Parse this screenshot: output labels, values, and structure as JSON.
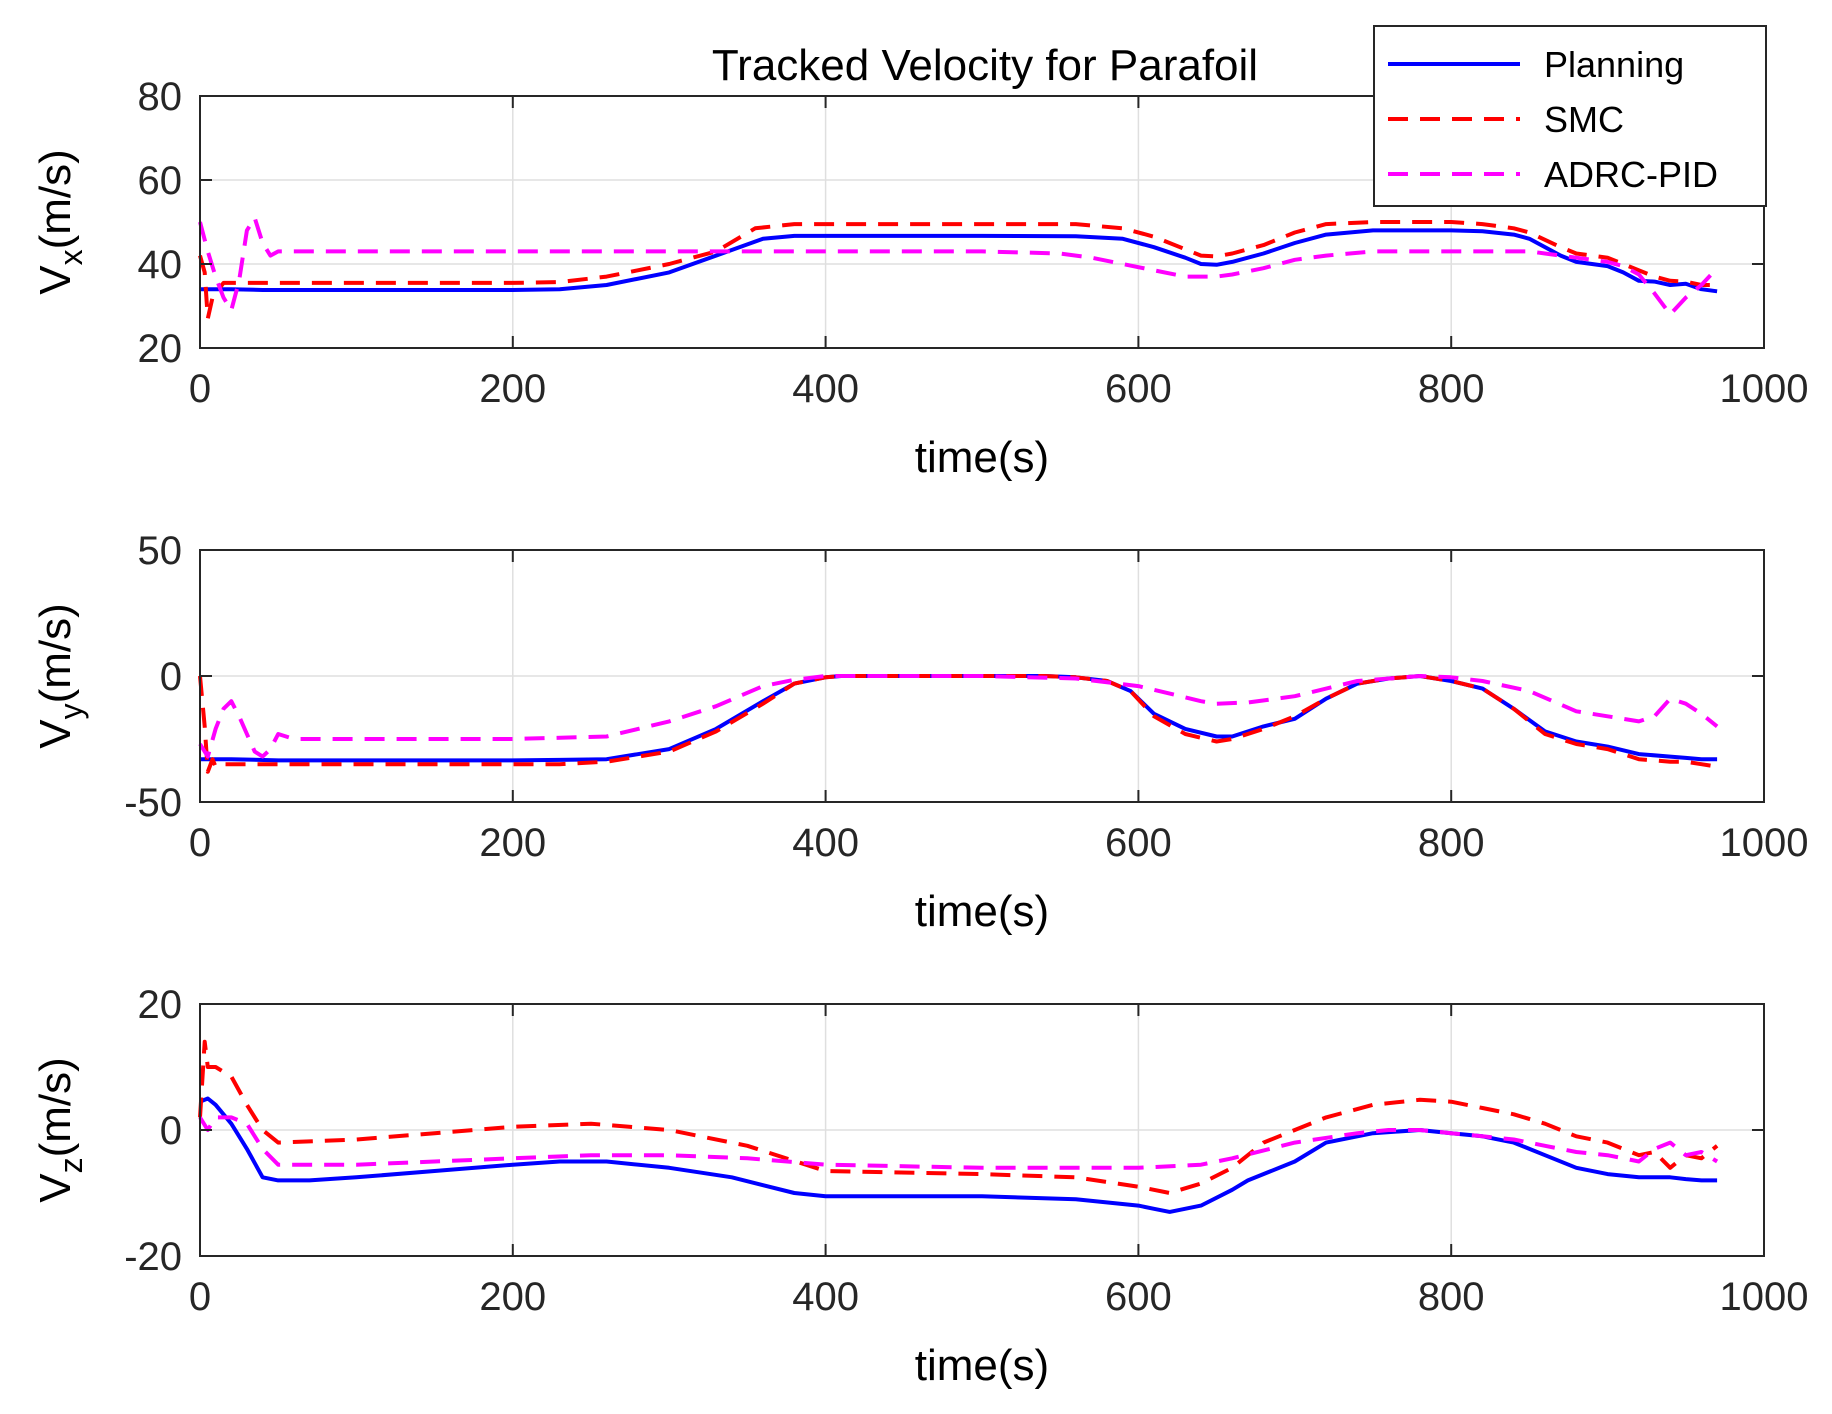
{
  "chart_data": {
    "type": "line",
    "title": "Tracked Velocity for Parafoil",
    "legend": {
      "placement": "top-right",
      "entries": [
        "Planning",
        "SMC",
        "ADRC-PID"
      ]
    },
    "styles": [
      {
        "name": "Planning",
        "color": "#0000ff",
        "dash": "solid"
      },
      {
        "name": "SMC",
        "color": "#ff0000",
        "dash": "dashed"
      },
      {
        "name": "ADRC-PID",
        "color": "#ff00ff",
        "dash": "dashed"
      }
    ],
    "grid": true,
    "subplots": [
      {
        "ylabel_main": "V",
        "ylabel_sub": "x",
        "ylabel_unit": "(m/s)",
        "xlabel": "time(s)",
        "xlim": [
          0,
          1000
        ],
        "ylim": [
          20,
          80
        ],
        "xticks": [
          0,
          200,
          400,
          600,
          800,
          1000
        ],
        "yticks": [
          20,
          40,
          60,
          80
        ],
        "series": [
          {
            "name": "Planning",
            "x": [
              0,
              20,
              40,
              60,
              100,
              150,
              200,
              230,
              260,
              300,
              330,
              360,
              380,
              400,
              450,
              500,
              560,
              590,
              610,
              630,
              640,
              650,
              660,
              680,
              700,
              720,
              750,
              800,
              820,
              840,
              850,
              870,
              880,
              900,
              910,
              920,
              930,
              940,
              950,
              960,
              970
            ],
            "y": [
              34,
              34,
              33.8,
              33.8,
              33.8,
              33.8,
              33.8,
              34,
              35,
              38,
              42,
              46,
              46.7,
              46.7,
              46.7,
              46.7,
              46.6,
              46,
              44,
              41.5,
              40,
              39.8,
              40.5,
              42.5,
              45,
              47,
              48,
              48,
              47.8,
              47,
              46,
              42,
              40.5,
              39.5,
              38,
              36,
              35.8,
              35,
              35.3,
              34,
              33.5
            ]
          },
          {
            "name": "SMC",
            "x": [
              0,
              3,
              5,
              8,
              15,
              20,
              30,
              50,
              100,
              150,
              200,
              230,
              260,
              300,
              330,
              355,
              380,
              400,
              450,
              500,
              560,
              590,
              610,
              630,
              640,
              650,
              660,
              680,
              700,
              720,
              750,
              800,
              820,
              840,
              850,
              870,
              880,
              900,
              910,
              920,
              930,
              940,
              950,
              960,
              970
            ],
            "y": [
              42,
              38,
              27,
              32,
              35.5,
              35.5,
              35.5,
              35.5,
              35.5,
              35.5,
              35.5,
              35.7,
              37,
              40,
              43,
              48.5,
              49.5,
              49.5,
              49.5,
              49.5,
              49.5,
              48.5,
              46.5,
              43.5,
              42,
              41.8,
              42.5,
              44.5,
              47.5,
              49.5,
              50,
              50,
              49.5,
              48.5,
              47.5,
              44,
              42.5,
              41.5,
              40,
              38.5,
              37,
              36,
              35.8,
              35,
              35
            ]
          },
          {
            "name": "ADRC-PID",
            "x": [
              0,
              5,
              10,
              15,
              20,
              25,
              30,
              35,
              40,
              45,
              50,
              100,
              200,
              300,
              350,
              400,
              500,
              550,
              570,
              590,
              610,
              630,
              650,
              660,
              680,
              700,
              720,
              750,
              800,
              850,
              860,
              880,
              900,
              910,
              920,
              930,
              940,
              950,
              960,
              970
            ],
            "y": [
              50,
              43,
              37,
              32,
              29,
              36,
              48,
              51,
              45,
              42,
              43,
              43,
              43,
              43,
              43,
              43,
              43,
              42.5,
              41.5,
              40,
              38.5,
              37,
              37,
              37.5,
              39,
              41,
              42,
              43,
              43,
              43,
              42.5,
              41.5,
              40.5,
              39.5,
              37.5,
              33,
              28,
              32,
              35,
              39
            ]
          }
        ]
      },
      {
        "ylabel_main": "V",
        "ylabel_sub": "y",
        "ylabel_unit": "(m/s)",
        "xlabel": "time(s)",
        "xlim": [
          0,
          1000
        ],
        "ylim": [
          -50,
          50
        ],
        "xticks": [
          0,
          200,
          400,
          600,
          800,
          1000
        ],
        "yticks": [
          -50,
          0,
          50
        ],
        "series": [
          {
            "name": "Planning",
            "x": [
              0,
              20,
              50,
              100,
              150,
              200,
              230,
              260,
              300,
              330,
              360,
              380,
              400,
              410,
              500,
              540,
              560,
              580,
              595,
              610,
              630,
              650,
              660,
              680,
              700,
              720,
              740,
              760,
              780,
              800,
              820,
              840,
              860,
              880,
              900,
              920,
              940,
              950,
              960,
              970
            ],
            "y": [
              -33,
              -33,
              -33.5,
              -33.5,
              -33.5,
              -33.5,
              -33.3,
              -33,
              -29,
              -21,
              -10,
              -3,
              -0.5,
              0,
              0,
              0,
              -0.5,
              -2,
              -6,
              -15,
              -21,
              -24,
              -24,
              -20,
              -17,
              -9,
              -3,
              -1,
              0,
              -2,
              -5,
              -13,
              -22,
              -26,
              -28,
              -31,
              -32,
              -32.5,
              -33,
              -33
            ]
          },
          {
            "name": "SMC",
            "x": [
              0,
              3,
              5,
              8,
              10,
              15,
              20,
              50,
              100,
              150,
              200,
              230,
              260,
              300,
              330,
              360,
              380,
              400,
              410,
              500,
              540,
              560,
              580,
              595,
              610,
              630,
              650,
              660,
              680,
              700,
              720,
              740,
              760,
              780,
              800,
              820,
              840,
              860,
              880,
              900,
              920,
              940,
              950,
              960,
              970
            ],
            "y": [
              0,
              -20,
              -38,
              -33,
              -36,
              -35,
              -35,
              -35,
              -35,
              -35,
              -35,
              -35,
              -34,
              -30,
              -22,
              -11,
              -3,
              -0.5,
              0,
              0,
              0,
              -0.5,
              -2,
              -6,
              -16,
              -23,
              -26,
              -25,
              -21,
              -16,
              -9,
              -3,
              -1,
              0,
              -2,
              -5,
              -13,
              -23,
              -27,
              -29,
              -33,
              -34,
              -34,
              -35,
              -36
            ]
          },
          {
            "name": "ADRC-PID",
            "x": [
              0,
              5,
              10,
              15,
              20,
              25,
              30,
              35,
              40,
              45,
              50,
              60,
              100,
              200,
              260,
              300,
              330,
              360,
              380,
              400,
              500,
              560,
              600,
              620,
              640,
              650,
              670,
              700,
              740,
              770,
              780,
              800,
              820,
              850,
              880,
              900,
              910,
              920,
              930,
              940,
              950,
              960,
              970
            ],
            "y": [
              -27,
              -32,
              -21,
              -13,
              -10,
              -16,
              -23,
              -30,
              -32,
              -29,
              -23,
              -25,
              -25,
              -25,
              -24,
              -18,
              -12,
              -4,
              -1.5,
              0,
              0,
              -1,
              -4,
              -7,
              -10,
              -11,
              -10.5,
              -8,
              -2,
              -0.5,
              0,
              -0.5,
              -2,
              -6,
              -14,
              -16,
              -17,
              -18,
              -16,
              -9,
              -11,
              -15,
              -20
            ]
          }
        ]
      },
      {
        "ylabel_main": "V",
        "ylabel_sub": "z",
        "ylabel_unit": "(m/s)",
        "xlabel": "time(s)",
        "xlim": [
          0,
          1000
        ],
        "ylim": [
          -20,
          20
        ],
        "xticks": [
          0,
          200,
          400,
          600,
          800,
          1000
        ],
        "yticks": [
          -20,
          0,
          20
        ],
        "series": [
          {
            "name": "Planning",
            "x": [
              0,
              5,
              10,
              20,
              30,
              40,
              50,
              70,
              100,
              150,
              200,
              230,
              260,
              300,
              340,
              380,
              400,
              500,
              560,
              600,
              610,
              620,
              640,
              660,
              670,
              700,
              720,
              750,
              780,
              800,
              820,
              840,
              860,
              880,
              900,
              920,
              940,
              950,
              960,
              970
            ],
            "y": [
              4.5,
              5,
              4,
              1,
              -3,
              -7.5,
              -8,
              -8,
              -7.5,
              -6.5,
              -5.5,
              -5,
              -5,
              -6,
              -7.5,
              -10,
              -10.5,
              -10.5,
              -11,
              -12,
              -12.5,
              -13,
              -12,
              -9.5,
              -8,
              -5,
              -2,
              -0.5,
              0,
              -0.5,
              -1,
              -2,
              -4,
              -6,
              -7,
              -7.5,
              -7.5,
              -7.8,
              -8,
              -8
            ]
          },
          {
            "name": "SMC",
            "x": [
              0,
              3,
              5,
              10,
              20,
              30,
              40,
              50,
              100,
              150,
              200,
              250,
              300,
              350,
              400,
              500,
              560,
              600,
              620,
              640,
              660,
              680,
              700,
              720,
              750,
              780,
              800,
              820,
              840,
              860,
              880,
              900,
              910,
              920,
              930,
              940,
              950,
              960,
              970
            ],
            "y": [
              2,
              14,
              10,
              10,
              8.5,
              4,
              0,
              -2,
              -1.5,
              -0.5,
              0.5,
              1,
              0,
              -2.5,
              -6.5,
              -7,
              -7.5,
              -9,
              -10,
              -8.5,
              -6,
              -2,
              0,
              2,
              4,
              4.8,
              4.5,
              3.5,
              2.5,
              1,
              -1,
              -2,
              -3,
              -4,
              -3.5,
              -6,
              -4,
              -4.5,
              -2.5
            ]
          },
          {
            "name": "ADRC-PID",
            "x": [
              0,
              5,
              10,
              20,
              30,
              40,
              50,
              100,
              150,
              200,
              250,
              300,
              350,
              400,
              500,
              600,
              640,
              660,
              700,
              740,
              760,
              780,
              800,
              820,
              840,
              860,
              880,
              900,
              910,
              920,
              930,
              940,
              950,
              960,
              970
            ],
            "y": [
              2,
              0,
              2,
              2,
              1,
              -3,
              -5.5,
              -5.5,
              -5,
              -4.5,
              -4,
              -4,
              -4.5,
              -5.5,
              -6,
              -6,
              -5.5,
              -4.5,
              -2,
              -0.5,
              0,
              0,
              -0.5,
              -1,
              -1.5,
              -2.5,
              -3.5,
              -4,
              -4.5,
              -5,
              -3,
              -2,
              -4,
              -3.5,
              -5
            ]
          }
        ]
      }
    ]
  }
}
